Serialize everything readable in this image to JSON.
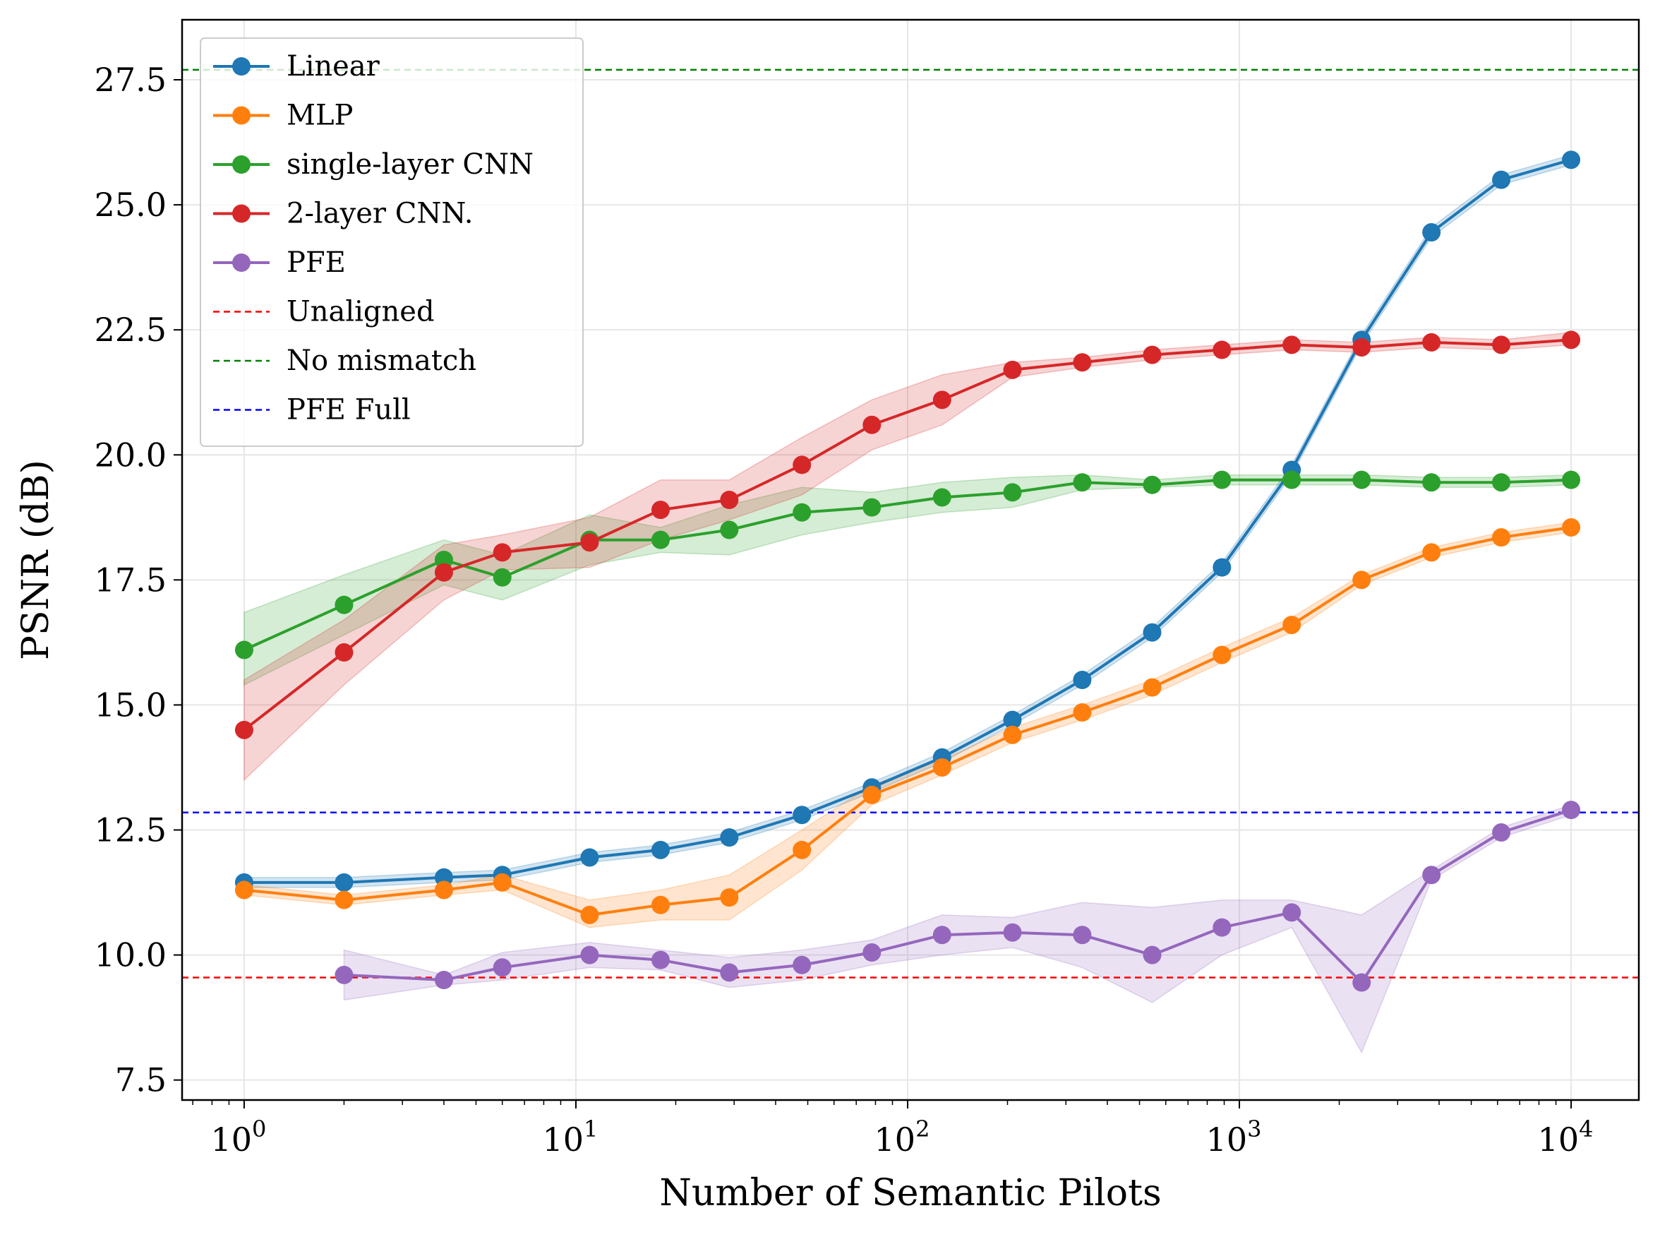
{
  "chart_data": {
    "type": "line",
    "xlabel": "Number of Semantic Pilots",
    "ylabel": "PSNR (dB)",
    "xscale": "log",
    "xlim": [
      0.65,
      16000
    ],
    "ylim": [
      7.1,
      28.7
    ],
    "grid": true,
    "legend_position": "top-left",
    "x_ticks": [
      {
        "value": 1,
        "base": "10",
        "exp": "0"
      },
      {
        "value": 10,
        "base": "10",
        "exp": "1"
      },
      {
        "value": 100,
        "base": "10",
        "exp": "2"
      },
      {
        "value": 1000,
        "base": "10",
        "exp": "3"
      },
      {
        "value": 10000,
        "base": "10",
        "exp": "4"
      }
    ],
    "y_ticks": [
      {
        "value": 7.5,
        "label": "7.5"
      },
      {
        "value": 10.0,
        "label": "10.0"
      },
      {
        "value": 12.5,
        "label": "12.5"
      },
      {
        "value": 15.0,
        "label": "15.0"
      },
      {
        "value": 17.5,
        "label": "17.5"
      },
      {
        "value": 20.0,
        "label": "20.0"
      },
      {
        "value": 22.5,
        "label": "22.5"
      },
      {
        "value": 25.0,
        "label": "25.0"
      },
      {
        "value": 27.5,
        "label": "27.5"
      }
    ],
    "series": [
      {
        "name": "Linear",
        "color": "#1f77b4",
        "x": [
          1,
          2,
          4,
          6,
          11,
          18,
          29,
          48,
          78,
          127,
          207,
          336,
          546,
          886,
          1438,
          2336,
          3793,
          6158,
          10000
        ],
        "y": [
          11.45,
          11.45,
          11.55,
          11.6,
          11.95,
          12.1,
          12.35,
          12.8,
          13.35,
          13.95,
          14.7,
          15.5,
          16.45,
          17.75,
          19.7,
          22.3,
          24.45,
          25.5,
          25.9
        ],
        "lower": [
          11.35,
          11.35,
          11.45,
          11.5,
          11.85,
          12.0,
          12.25,
          12.7,
          13.25,
          13.85,
          14.6,
          15.4,
          16.35,
          17.65,
          19.6,
          22.2,
          24.35,
          25.4,
          25.8
        ],
        "upper": [
          11.55,
          11.55,
          11.65,
          11.7,
          12.05,
          12.2,
          12.45,
          12.9,
          13.45,
          14.05,
          14.8,
          15.6,
          16.55,
          17.85,
          19.8,
          22.4,
          24.55,
          25.6,
          26.0
        ]
      },
      {
        "name": "MLP",
        "color": "#ff7f0e",
        "x": [
          1,
          2,
          4,
          6,
          11,
          18,
          29,
          48,
          78,
          127,
          207,
          336,
          546,
          886,
          1438,
          2336,
          3793,
          6158,
          10000
        ],
        "y": [
          11.3,
          11.1,
          11.3,
          11.45,
          10.8,
          11.0,
          11.15,
          12.1,
          13.2,
          13.75,
          14.4,
          14.85,
          15.35,
          16.0,
          16.6,
          17.5,
          18.05,
          18.35,
          18.55
        ],
        "lower": [
          11.2,
          11.0,
          11.2,
          11.3,
          10.55,
          10.7,
          10.7,
          11.7,
          13.0,
          13.6,
          14.25,
          14.7,
          15.2,
          15.85,
          16.45,
          17.4,
          17.95,
          18.25,
          18.45
        ],
        "upper": [
          11.4,
          11.2,
          11.4,
          11.6,
          11.1,
          11.3,
          11.6,
          12.5,
          13.4,
          13.9,
          14.55,
          15.0,
          15.5,
          16.15,
          16.75,
          17.6,
          18.15,
          18.45,
          18.65
        ]
      },
      {
        "name": "single-layer CNN",
        "color": "#2ca02c",
        "x": [
          1,
          2,
          4,
          6,
          11,
          18,
          29,
          48,
          78,
          127,
          207,
          336,
          546,
          886,
          1438,
          2336,
          3793,
          6158,
          10000
        ],
        "y": [
          16.1,
          17.0,
          17.9,
          17.55,
          18.3,
          18.3,
          18.5,
          18.85,
          18.95,
          19.15,
          19.25,
          19.45,
          19.4,
          19.5,
          19.5,
          19.5,
          19.45,
          19.45,
          19.5
        ],
        "lower": [
          15.4,
          16.4,
          17.4,
          17.1,
          17.8,
          18.05,
          18.0,
          18.4,
          18.65,
          18.85,
          18.95,
          19.3,
          19.35,
          19.4,
          19.4,
          19.4,
          19.35,
          19.35,
          19.4
        ],
        "upper": [
          16.85,
          17.6,
          18.3,
          18.0,
          18.8,
          18.55,
          19.0,
          19.35,
          19.25,
          19.45,
          19.55,
          19.6,
          19.5,
          19.6,
          19.6,
          19.6,
          19.55,
          19.55,
          19.6
        ]
      },
      {
        "name": "2-layer CNN.",
        "color": "#d62728",
        "x": [
          1,
          2,
          4,
          6,
          11,
          18,
          29,
          48,
          78,
          127,
          207,
          336,
          546,
          886,
          1438,
          2336,
          3793,
          6158,
          10000
        ],
        "y": [
          14.5,
          16.05,
          17.65,
          18.05,
          18.25,
          18.9,
          19.1,
          19.8,
          20.6,
          21.1,
          21.7,
          21.85,
          22.0,
          22.1,
          22.2,
          22.15,
          22.25,
          22.2,
          22.3
        ],
        "lower": [
          13.5,
          15.4,
          17.1,
          17.7,
          17.75,
          18.3,
          18.7,
          19.2,
          20.1,
          20.6,
          21.55,
          21.75,
          21.9,
          22.0,
          22.1,
          22.05,
          22.15,
          22.1,
          22.2
        ],
        "upper": [
          15.5,
          16.7,
          18.2,
          18.4,
          18.75,
          19.5,
          19.5,
          20.35,
          21.1,
          21.6,
          21.85,
          21.95,
          22.1,
          22.2,
          22.3,
          22.25,
          22.35,
          22.3,
          22.45
        ]
      },
      {
        "name": "PFE",
        "color": "#9467bd",
        "x": [
          2,
          4,
          6,
          11,
          18,
          29,
          48,
          78,
          127,
          207,
          336,
          546,
          886,
          1438,
          2336,
          3793,
          6158,
          10000
        ],
        "y": [
          9.6,
          9.5,
          9.75,
          10.0,
          9.9,
          9.65,
          9.8,
          10.05,
          10.4,
          10.45,
          10.4,
          10.0,
          10.55,
          10.85,
          9.45,
          11.6,
          12.45,
          12.9
        ],
        "lower": [
          9.1,
          9.4,
          9.5,
          9.75,
          9.7,
          9.35,
          9.5,
          9.8,
          10.0,
          10.15,
          9.75,
          9.05,
          10.0,
          10.55,
          8.05,
          11.5,
          12.35,
          12.8
        ],
        "upper": [
          10.1,
          9.6,
          10.05,
          10.25,
          10.1,
          9.95,
          10.1,
          10.3,
          10.8,
          10.75,
          11.05,
          10.95,
          11.1,
          11.1,
          10.8,
          11.7,
          12.55,
          13.0
        ]
      }
    ],
    "reference_lines": [
      {
        "name": "Unaligned",
        "color": "#ff0000",
        "y": 9.55
      },
      {
        "name": "No mismatch",
        "color": "#008000",
        "y": 27.7
      },
      {
        "name": "PFE Full",
        "color": "#0000ff",
        "y": 12.85
      }
    ]
  }
}
